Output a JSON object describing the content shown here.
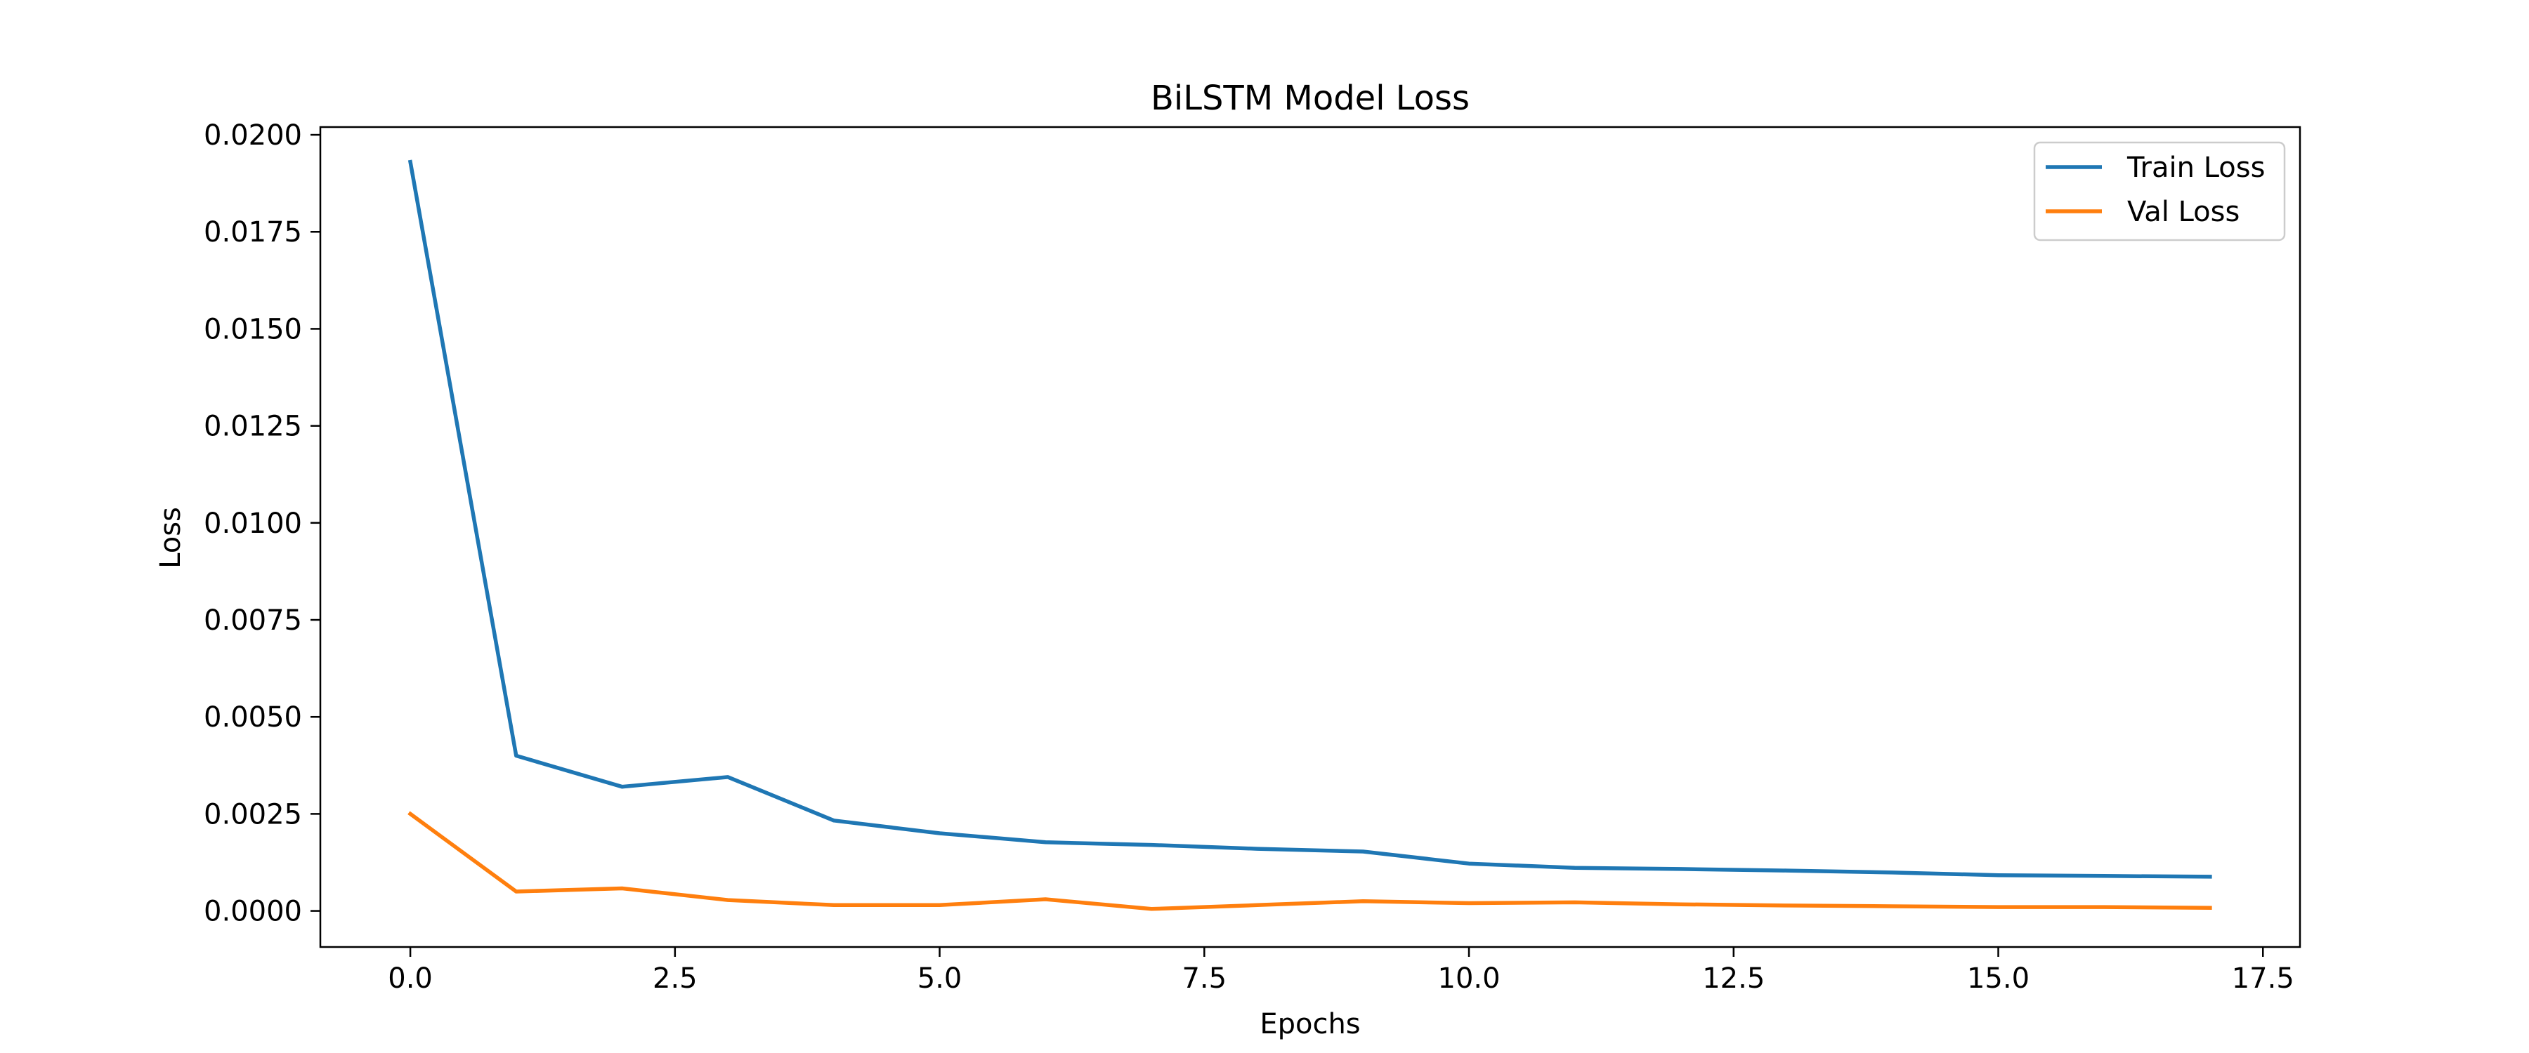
{
  "chart_data": {
    "type": "line",
    "title": "BiLSTM Model Loss",
    "xlabel": "Epochs",
    "ylabel": "Loss",
    "xlim": [
      -0.85,
      17.85
    ],
    "ylim": [
      -0.00093,
      0.0202
    ],
    "xticks": [
      0.0,
      2.5,
      5.0,
      7.5,
      10.0,
      12.5,
      15.0,
      17.5
    ],
    "xtick_labels": [
      "0.0",
      "2.5",
      "5.0",
      "7.5",
      "10.0",
      "12.5",
      "15.0",
      "17.5"
    ],
    "yticks": [
      0.0,
      0.0025,
      0.005,
      0.0075,
      0.01,
      0.0125,
      0.015,
      0.0175,
      0.02
    ],
    "ytick_labels": [
      "0.0000",
      "0.0025",
      "0.0050",
      "0.0075",
      "0.0100",
      "0.0125",
      "0.0150",
      "0.0175",
      "0.0200"
    ],
    "grid": false,
    "legend_position": "top-right",
    "x": [
      0,
      1,
      2,
      3,
      4,
      5,
      6,
      7,
      8,
      9,
      10,
      11,
      12,
      13,
      14,
      15,
      16,
      17
    ],
    "series": [
      {
        "name": "Train Loss",
        "color": "#1f77b4",
        "values": [
          0.0193,
          0.004,
          0.0032,
          0.00345,
          0.00233,
          0.002,
          0.00177,
          0.0017,
          0.0016,
          0.00153,
          0.00122,
          0.00111,
          0.00108,
          0.00104,
          0.00099,
          0.00092,
          0.0009,
          0.00088
        ]
      },
      {
        "name": "Val Loss",
        "color": "#ff7f0e",
        "values": [
          0.0025,
          0.0005,
          0.00058,
          0.00028,
          0.00015,
          0.00015,
          0.0003,
          5e-05,
          0.00015,
          0.00025,
          0.0002,
          0.00022,
          0.00017,
          0.00014,
          0.00012,
          0.0001,
          0.0001,
          8e-05
        ]
      }
    ]
  }
}
